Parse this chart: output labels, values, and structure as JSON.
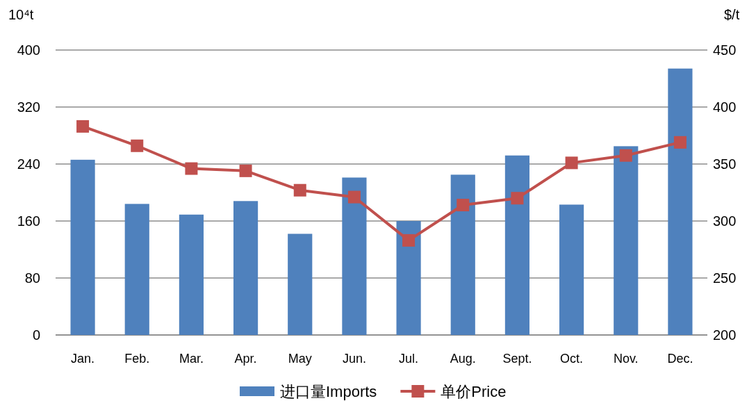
{
  "chart_data": {
    "type": "bar",
    "ylabel": "10⁴t",
    "y2label": "$/t",
    "categories": [
      "Jan.",
      "Feb.",
      "Mar.",
      "Apr.",
      "May",
      "Jun.",
      "Jul.",
      "Aug.",
      "Sept.",
      "Oct.",
      "Nov.",
      "Dec."
    ],
    "series": [
      {
        "name": "进口量Imports",
        "color": "#4f81bd",
        "values": [
          246,
          184,
          169,
          188,
          142,
          221,
          160,
          225,
          252,
          183,
          265,
          374
        ]
      },
      {
        "name": "单价Price",
        "type": "line",
        "axis": "y2",
        "color": "#c0504d",
        "marker": "square",
        "values": [
          383,
          366,
          346,
          344,
          327,
          321,
          283,
          314,
          320,
          351,
          357.5,
          369
        ]
      }
    ],
    "ylim": [
      0,
      400
    ],
    "yticks": [
      0,
      80,
      160,
      240,
      320,
      400
    ],
    "y2lim": [
      200,
      450
    ],
    "y2ticks": [
      200,
      250,
      300,
      350,
      400,
      450
    ],
    "grid": "y",
    "legend": "bottom"
  }
}
